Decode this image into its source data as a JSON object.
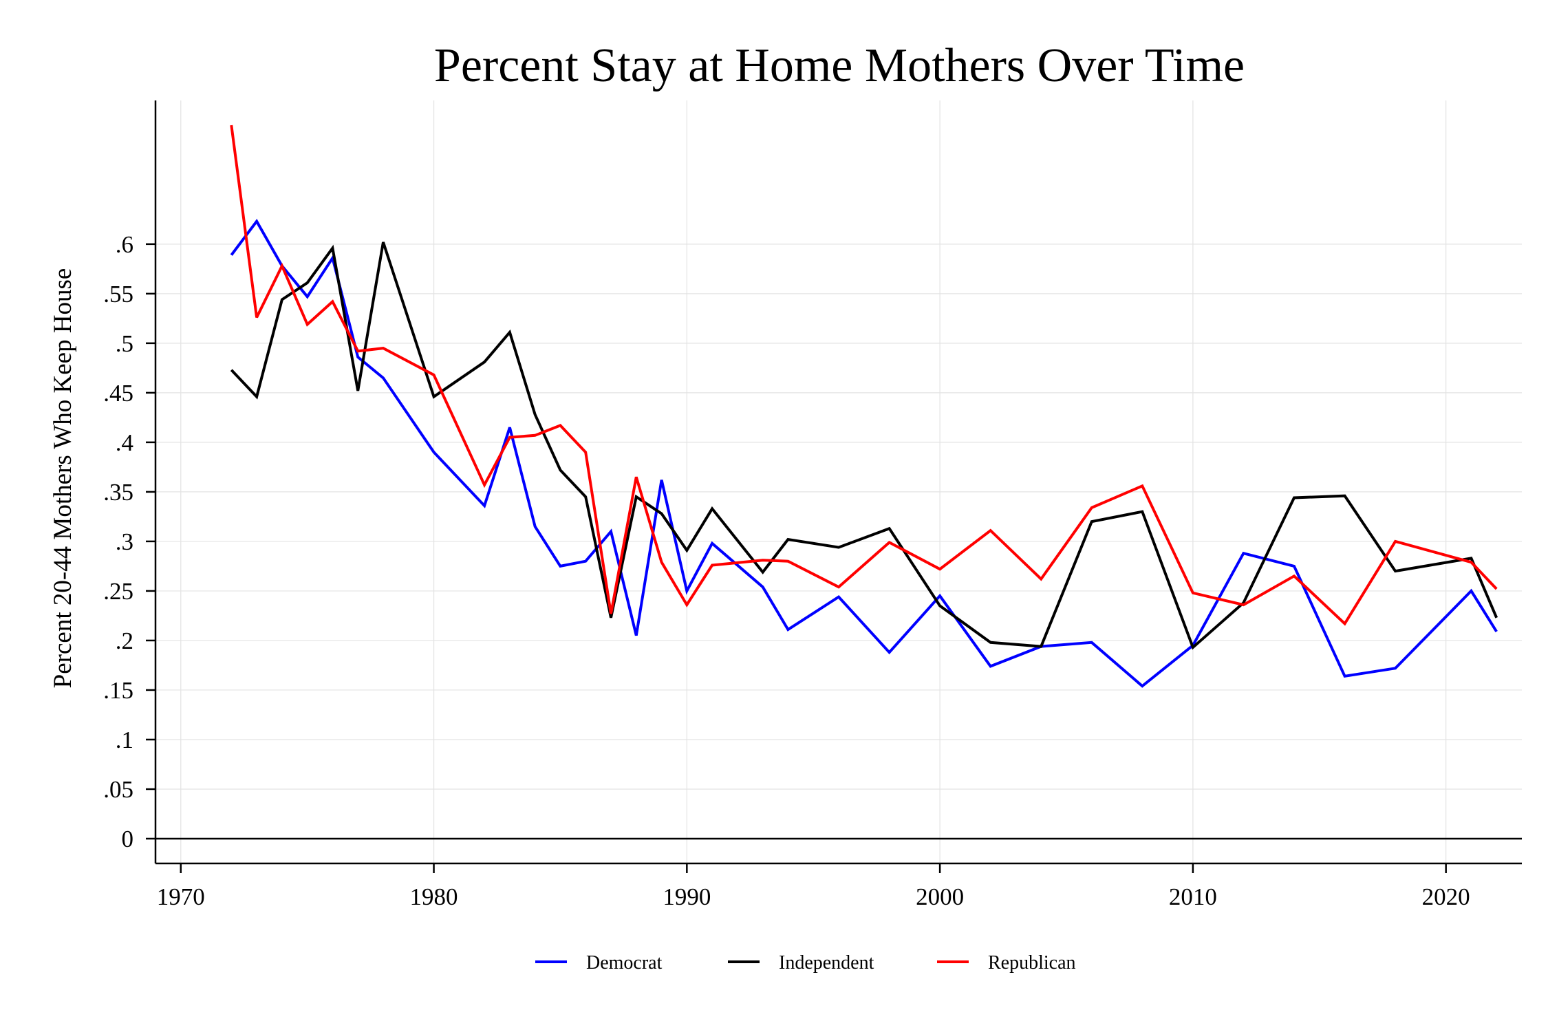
{
  "chart_data": {
    "type": "line",
    "title": "Percent Stay at Home Mothers Over Time",
    "xlabel": "",
    "ylabel": "Percent 20-44 Mothers Who Keep House",
    "xlim": [
      1969,
      2023
    ],
    "ylim": [
      -0.025,
      0.745
    ],
    "x_ticks": [
      1970,
      1980,
      1990,
      2000,
      2010,
      2020
    ],
    "x_tick_labels": [
      "1970",
      "1980",
      "1990",
      "2000",
      "2010",
      "2020"
    ],
    "y_ticks": [
      0,
      0.05,
      0.1,
      0.15,
      0.2,
      0.25,
      0.3,
      0.35,
      0.4,
      0.45,
      0.5,
      0.55,
      0.6
    ],
    "y_tick_labels": [
      "0",
      ".05",
      ".1",
      ".15",
      ".2",
      ".25",
      ".3",
      ".35",
      ".4",
      ".45",
      ".5",
      ".55",
      ".6"
    ],
    "grid": true,
    "legend_position": "bottom",
    "series": [
      {
        "name": "Democrat",
        "color": "#0000ff",
        "x": [
          1972,
          1973,
          1974,
          1975,
          1976,
          1977,
          1978,
          1980,
          1982,
          1983,
          1984,
          1985,
          1986,
          1987,
          1988,
          1989,
          1990,
          1991,
          1993,
          1994,
          1996,
          1998,
          2000,
          2002,
          2004,
          2006,
          2008,
          2010,
          2012,
          2014,
          2016,
          2018,
          2021,
          2022
        ],
        "values": [
          0.589,
          0.623,
          0.578,
          0.547,
          0.586,
          0.486,
          0.465,
          0.39,
          0.336,
          0.415,
          0.315,
          0.275,
          0.28,
          0.31,
          0.205,
          0.362,
          0.25,
          0.298,
          0.254,
          0.211,
          0.244,
          0.188,
          0.245,
          0.174,
          0.194,
          0.198,
          0.154,
          0.195,
          0.288,
          0.275,
          0.164,
          0.172,
          0.25,
          0.209
        ]
      },
      {
        "name": "Independent",
        "color": "#000000",
        "x": [
          1972,
          1973,
          1974,
          1975,
          1976,
          1977,
          1978,
          1980,
          1982,
          1983,
          1984,
          1985,
          1986,
          1987,
          1988,
          1989,
          1990,
          1991,
          1993,
          1994,
          1996,
          1998,
          2000,
          2002,
          2004,
          2006,
          2008,
          2010,
          2012,
          2014,
          2016,
          2018,
          2021,
          2022
        ],
        "values": [
          0.473,
          0.446,
          0.544,
          0.561,
          0.596,
          0.452,
          0.602,
          0.446,
          0.481,
          0.511,
          0.428,
          0.372,
          0.345,
          0.223,
          0.345,
          0.328,
          0.291,
          0.333,
          0.269,
          0.302,
          0.294,
          0.313,
          0.235,
          0.198,
          0.194,
          0.32,
          0.33,
          0.193,
          0.238,
          0.344,
          0.346,
          0.27,
          0.283,
          0.223
        ]
      },
      {
        "name": "Republican",
        "color": "#ff0000",
        "x": [
          1972,
          1973,
          1974,
          1975,
          1976,
          1977,
          1978,
          1980,
          1982,
          1983,
          1984,
          1985,
          1986,
          1987,
          1988,
          1989,
          1990,
          1991,
          1993,
          1994,
          1996,
          1998,
          2000,
          2002,
          2004,
          2006,
          2008,
          2010,
          2012,
          2014,
          2016,
          2018,
          2021,
          2022
        ],
        "values": [
          0.72,
          0.526,
          0.578,
          0.519,
          0.542,
          0.492,
          0.495,
          0.468,
          0.357,
          0.405,
          0.407,
          0.417,
          0.39,
          0.227,
          0.365,
          0.279,
          0.236,
          0.276,
          0.281,
          0.28,
          0.254,
          0.299,
          0.272,
          0.311,
          0.262,
          0.334,
          0.356,
          0.248,
          0.236,
          0.265,
          0.217,
          0.3,
          0.279,
          0.252
        ]
      }
    ]
  }
}
